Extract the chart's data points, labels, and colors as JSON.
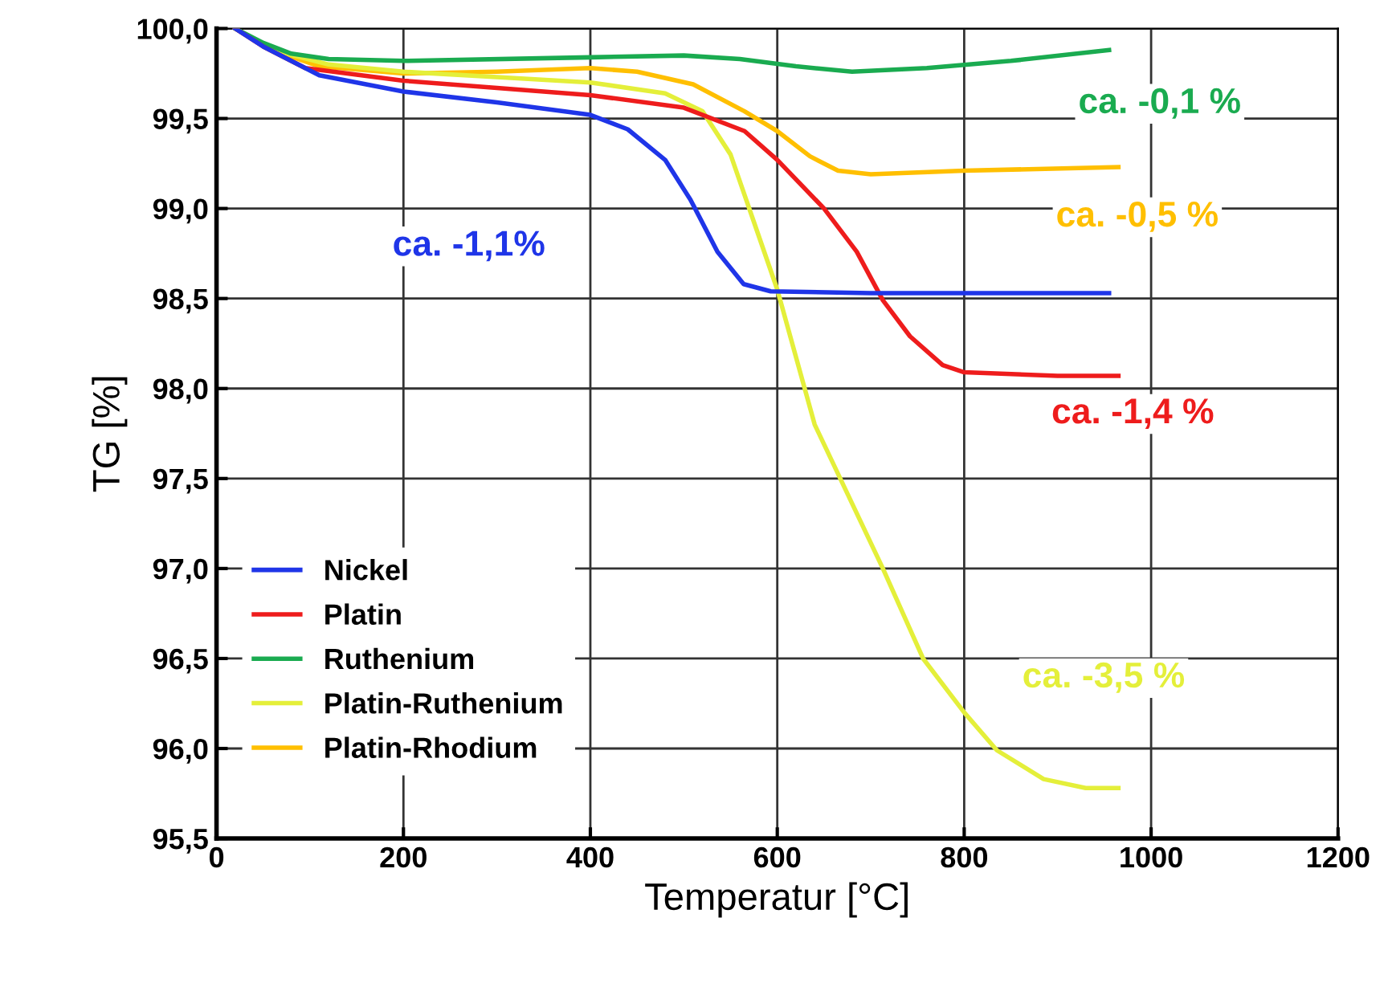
{
  "chart_data": {
    "type": "line",
    "xlabel": "Temperatur [°C]",
    "ylabel": "TG [%]",
    "xlim": [
      0,
      1200
    ],
    "xticks": [
      0,
      200,
      400,
      600,
      800,
      1000,
      1200
    ],
    "ylim": [
      95.5,
      100.0
    ],
    "yticks": [
      {
        "value": 95.5,
        "label": "95,5"
      },
      {
        "value": 96.0,
        "label": "96,0"
      },
      {
        "value": 96.5,
        "label": "96,5"
      },
      {
        "value": 97.0,
        "label": "97,0"
      },
      {
        "value": 97.5,
        "label": "97,5"
      },
      {
        "value": 98.0,
        "label": "98,0"
      },
      {
        "value": 98.5,
        "label": "98,5"
      },
      {
        "value": 99.0,
        "label": "99,0"
      },
      {
        "value": 99.5,
        "label": "99,5"
      },
      {
        "value": 100.0,
        "label": "100,0"
      }
    ],
    "grid": true,
    "legend": "bottom left",
    "marker": "none",
    "line_style": "solid",
    "series": [
      {
        "name": "Nickel",
        "color": "#1f35e8",
        "x": [
          20,
          50,
          110,
          200,
          300,
          400,
          440,
          480,
          507,
          536,
          564,
          593,
          700,
          955
        ],
        "values": [
          100.0,
          99.9,
          99.74,
          99.65,
          99.59,
          99.52,
          99.44,
          99.27,
          99.05,
          98.76,
          98.58,
          98.54,
          98.53,
          98.53
        ]
      },
      {
        "name": "Platin",
        "color": "#ee1c1c",
        "x": [
          20,
          50,
          95,
          200,
          300,
          400,
          500,
          565,
          600,
          650,
          685,
          713,
          742,
          777,
          800,
          900,
          965
        ],
        "values": [
          100.0,
          99.9,
          99.78,
          99.71,
          99.67,
          99.63,
          99.56,
          99.43,
          99.27,
          99.0,
          98.76,
          98.49,
          98.29,
          98.13,
          98.09,
          98.07,
          98.07
        ]
      },
      {
        "name": "Ruthenium",
        "color": "#1aab50",
        "x": [
          20,
          50,
          80,
          120,
          200,
          400,
          500,
          560,
          620,
          680,
          760,
          850,
          955
        ],
        "values": [
          100.0,
          99.92,
          99.86,
          99.83,
          99.82,
          99.84,
          99.85,
          99.83,
          99.79,
          99.76,
          99.78,
          99.82,
          99.88
        ]
      },
      {
        "name": "Platin-Ruthenium",
        "color": "#e4ef3a",
        "x": [
          20,
          60,
          120,
          200,
          300,
          400,
          480,
          520,
          550,
          580,
          600,
          640,
          713,
          756,
          800,
          835,
          885,
          930,
          965
        ],
        "values": [
          100.0,
          99.88,
          99.8,
          99.76,
          99.73,
          99.7,
          99.64,
          99.54,
          99.3,
          98.85,
          98.55,
          97.8,
          97.0,
          96.5,
          96.2,
          95.99,
          95.83,
          95.78,
          95.78
        ]
      },
      {
        "name": "Platin-Rhodium",
        "color": "#ffbf00",
        "x": [
          20,
          60,
          110,
          200,
          300,
          400,
          450,
          510,
          565,
          600,
          635,
          665,
          700,
          800,
          965
        ],
        "values": [
          100.0,
          99.88,
          99.79,
          99.75,
          99.76,
          99.78,
          99.76,
          99.69,
          99.54,
          99.43,
          99.29,
          99.21,
          99.19,
          99.21,
          99.23
        ]
      }
    ],
    "annotations": [
      "ca. -1,1%",
      "ca. -1,4 %",
      "ca. -0,1 %",
      "ca. -3,5 %",
      "ca. -0,5 %"
    ]
  }
}
